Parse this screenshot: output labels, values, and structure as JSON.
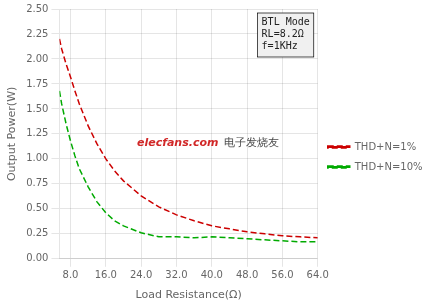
{
  "chart_data": {
    "type": "line",
    "xlabel": "Load Resistance(Ω)",
    "ylabel": "Output Power(W)",
    "x": [
      5.5,
      6.0,
      7.0,
      8.0,
      9.0,
      10.0,
      12.0,
      14.0,
      16.0,
      18.0,
      20.0,
      24.0,
      28.0,
      32.0,
      36.0,
      40.0,
      44.0,
      48.0,
      52.0,
      56.0,
      60.0,
      64.0
    ],
    "series": [
      {
        "name": "THD+N=1%",
        "color": "#cc0000",
        "line_style": "dashed",
        "values": [
          2.2,
          2.1,
          1.95,
          1.82,
          1.68,
          1.55,
          1.33,
          1.15,
          1.0,
          0.88,
          0.78,
          0.63,
          0.52,
          0.44,
          0.38,
          0.33,
          0.3,
          0.27,
          0.25,
          0.23,
          0.22,
          0.21
        ]
      },
      {
        "name": "THD+N=10%",
        "color": "#00aa00",
        "line_style": "dashed",
        "values": [
          1.68,
          1.55,
          1.35,
          1.18,
          1.03,
          0.9,
          0.72,
          0.57,
          0.46,
          0.38,
          0.33,
          0.26,
          0.22,
          0.22,
          0.21,
          0.22,
          0.21,
          0.2,
          0.19,
          0.18,
          0.17,
          0.17
        ]
      }
    ],
    "xlim": [
      5.5,
      64.0
    ],
    "ylim": [
      0.0,
      2.5
    ],
    "xticks": [
      {
        "value": 8,
        "label": "8.0"
      },
      {
        "value": 16,
        "label": "16.0"
      },
      {
        "value": 24,
        "label": "24.0"
      },
      {
        "value": 32,
        "label": "32.0"
      },
      {
        "value": 40,
        "label": "40.0"
      },
      {
        "value": 48,
        "label": "48.0"
      },
      {
        "value": 56,
        "label": "56.0"
      },
      {
        "value": 64,
        "label": "64.0"
      }
    ],
    "yticks": [
      {
        "value": 0,
        "label": "0.00"
      },
      {
        "value": 0.25,
        "label": "0.25"
      },
      {
        "value": 0.5,
        "label": "0.50"
      },
      {
        "value": 0.75,
        "label": "0.75"
      },
      {
        "value": 1,
        "label": "1.00"
      },
      {
        "value": 1.25,
        "label": "1.25"
      },
      {
        "value": 1.5,
        "label": "1.50"
      },
      {
        "value": 1.75,
        "label": "1.75"
      },
      {
        "value": 2,
        "label": "2.00"
      },
      {
        "value": 2.25,
        "label": "2.25"
      },
      {
        "value": 2.5,
        "label": "2.50"
      }
    ],
    "grid": true,
    "legend": "right",
    "annotations": [
      "BTL Mode\nRL=8.2Ω\nf=1KHz",
      "elecfans.com",
      "电子发烧友"
    ]
  }
}
